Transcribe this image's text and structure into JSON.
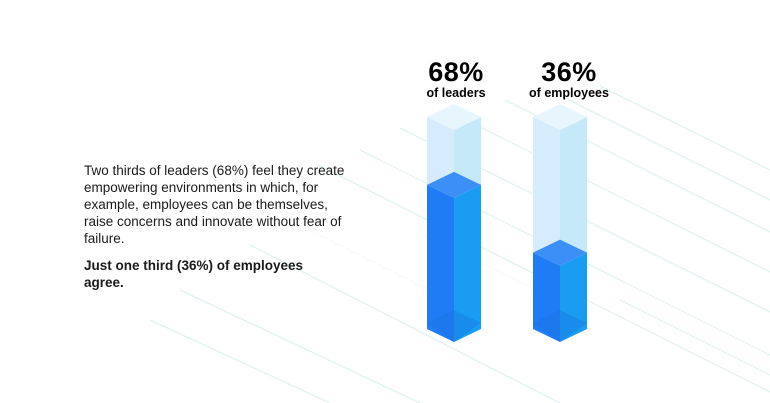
{
  "text": {
    "paragraph": "Two thirds of leaders (68%) feel they create empowering environments in which, for example, employees can be themselves, raise concerns and innovate without fear of failure.",
    "emphasis": "Just one third (36%) of employees agree."
  },
  "chart_data": {
    "type": "bar",
    "categories": [
      "of leaders",
      "of employees"
    ],
    "values": [
      68,
      36
    ],
    "value_labels": [
      "68%",
      "36%"
    ],
    "unit": "%",
    "ylim": [
      0,
      100
    ],
    "colors": {
      "bar_front": "#1f7cf5",
      "bar_side": "#1a9cf2",
      "bar_top": "#3c8ff7",
      "empty_front": "#d6ecfc",
      "empty_side": "#c6e9fa",
      "empty_top": "#e7f5fd",
      "shadow": "#e8e8e8",
      "lines": "#d9f0ee"
    }
  }
}
